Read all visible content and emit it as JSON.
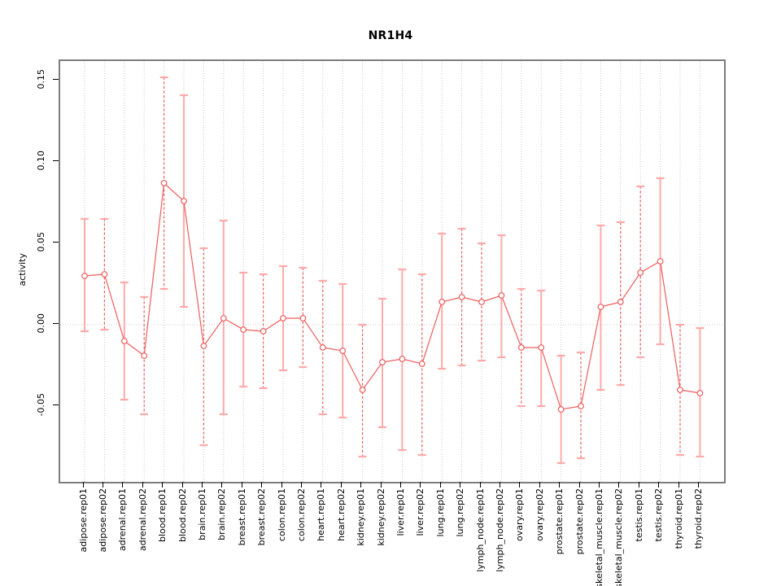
{
  "figure": {
    "title": "NR1H4",
    "ylabel": "activity"
  },
  "chart_data": {
    "type": "line",
    "title": "NR1H4",
    "xlabel": "",
    "ylabel": "activity",
    "ylim": [
      -0.0965,
      0.162
    ],
    "grid": "vertical dotted gridline at every category; dotted horizontal line at y=0",
    "legend": "none",
    "marker": "open-circle",
    "error_bars": true,
    "yticks": [
      {
        "label": "0.15",
        "value": 0.15
      },
      {
        "label": "0.10",
        "value": 0.1
      },
      {
        "label": "0.05",
        "value": 0.05
      },
      {
        "label": "0.00",
        "value": 0.0
      },
      {
        "label": "-0.05",
        "value": -0.05
      }
    ],
    "categories": [
      "adipose.rep01",
      "adipose.rep02",
      "adrenal.rep01",
      "adrenal.rep02",
      "blood.rep01",
      "blood.rep02",
      "brain.rep01",
      "brain.rep02",
      "breast.rep01",
      "breast.rep02",
      "colon.rep01",
      "colon.rep02",
      "heart.rep01",
      "heart.rep02",
      "kidney.rep01",
      "kidney.rep02",
      "liver.rep01",
      "liver.rep02",
      "lung.rep01",
      "lung.rep02",
      "lymph_node.rep01",
      "lymph_node.rep02",
      "ovary.rep01",
      "ovary.rep02",
      "prostate.rep01",
      "prostate.rep02",
      "skeletal_muscle.rep01",
      "skeletal_muscle.rep02",
      "testis.rep01",
      "testis.rep02",
      "thyroid.rep01",
      "thyroid.rep02"
    ],
    "series": [
      {
        "name": "activity",
        "values": [
          0.03,
          0.031,
          -0.01,
          -0.019,
          0.087,
          0.076,
          -0.013,
          0.004,
          -0.003,
          -0.004,
          0.004,
          0.004,
          -0.014,
          -0.016,
          -0.04,
          -0.023,
          -0.021,
          -0.024,
          0.014,
          0.017,
          0.014,
          0.018,
          -0.014,
          -0.014,
          -0.052,
          -0.05,
          0.011,
          0.014,
          0.032,
          0.039,
          -0.04,
          -0.042
        ],
        "error_low": [
          -0.004,
          -0.003,
          -0.046,
          -0.055,
          0.022,
          0.011,
          -0.074,
          -0.055,
          -0.038,
          -0.039,
          -0.028,
          -0.026,
          -0.055,
          -0.057,
          -0.081,
          -0.063,
          -0.077,
          -0.08,
          -0.027,
          -0.025,
          -0.022,
          -0.02,
          -0.05,
          -0.05,
          -0.085,
          -0.082,
          -0.04,
          -0.037,
          -0.02,
          -0.012,
          -0.08,
          -0.081
        ],
        "error_high": [
          0.065,
          0.065,
          0.026,
          0.017,
          0.152,
          0.141,
          0.047,
          0.064,
          0.032,
          0.031,
          0.036,
          0.035,
          0.027,
          0.025,
          0.0,
          0.016,
          0.034,
          0.031,
          0.056,
          0.059,
          0.05,
          0.055,
          0.022,
          0.021,
          -0.019,
          -0.017,
          0.061,
          0.063,
          0.085,
          0.09,
          0.0,
          -0.002
        ],
        "errorbar_dashed": [
          false,
          true,
          false,
          true,
          true,
          false,
          true,
          false,
          false,
          true,
          false,
          true,
          true,
          false,
          true,
          false,
          false,
          true,
          false,
          true,
          true,
          false,
          true,
          false,
          false,
          true,
          false,
          true,
          true,
          false,
          true,
          false
        ]
      }
    ],
    "colors": {
      "marker_line": "#ee5c5c",
      "errorbar_solid": "#ffaaaa",
      "errorbar_dashed": "#e86262",
      "errorbar_cap": "#ffaaaa",
      "gridline": "#c9c9c9",
      "zero_line": "#cccccc",
      "plot_border": "#7d7d7d",
      "text": "#000000"
    }
  }
}
